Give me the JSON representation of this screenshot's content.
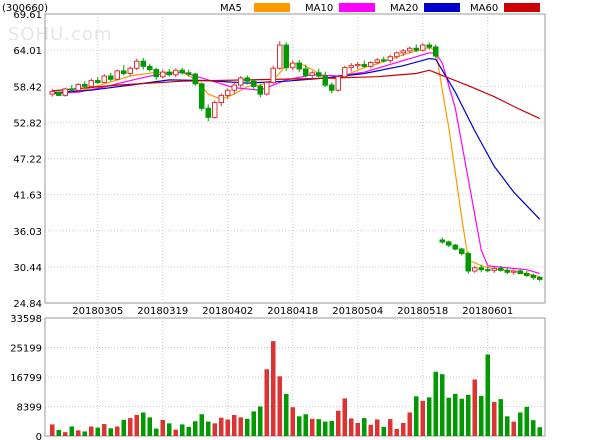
{
  "chart_data": {
    "type": "candlestick",
    "ticker": "(300660)",
    "watermark": "SOHU.com",
    "price_axis": {
      "ylim": [
        24.84,
        69.61
      ],
      "ticks": [
        "69.61",
        "64.01",
        "58.42",
        "52.82",
        "47.22",
        "41.63",
        "36.03",
        "30.44",
        "24.84"
      ]
    },
    "volume_axis": {
      "ylim": [
        0,
        33598
      ],
      "ticks": [
        "33598",
        "25199",
        "16799",
        "8399",
        "0"
      ]
    },
    "date_labels": [
      {
        "index": 7,
        "label": "20180305"
      },
      {
        "index": 17,
        "label": "20180319"
      },
      {
        "index": 27,
        "label": "20180402"
      },
      {
        "index": 37,
        "label": "20180418"
      },
      {
        "index": 47,
        "label": "20180504"
      },
      {
        "index": 57,
        "label": "20180518"
      },
      {
        "index": 67,
        "label": "20180601"
      }
    ],
    "legend": [
      {
        "name": "MA5",
        "color": "#ff9900"
      },
      {
        "name": "MA10",
        "color": "#ff00ff"
      },
      {
        "name": "MA20",
        "color": "#0000cc"
      },
      {
        "name": "MA60",
        "color": "#cc0000"
      }
    ],
    "up_color": "#dd3333",
    "down_color": "#009900",
    "candles": [
      [
        57.2,
        58.0,
        56.8,
        57.6
      ],
      [
        57.5,
        57.6,
        56.9,
        57.0
      ],
      [
        57.0,
        58.2,
        56.8,
        58.0
      ],
      [
        58.0,
        58.6,
        57.5,
        57.8
      ],
      [
        57.8,
        58.9,
        57.6,
        58.7
      ],
      [
        58.7,
        59.2,
        58.1,
        58.4
      ],
      [
        58.4,
        59.6,
        58.2,
        59.3
      ],
      [
        59.3,
        59.8,
        58.8,
        59.0
      ],
      [
        59.0,
        60.3,
        58.9,
        60.0
      ],
      [
        60.0,
        60.5,
        59.2,
        59.5
      ],
      [
        59.5,
        61.0,
        59.3,
        60.8
      ],
      [
        60.8,
        61.7,
        60.1,
        60.4
      ],
      [
        60.4,
        61.5,
        60.0,
        61.2
      ],
      [
        61.2,
        62.7,
        60.9,
        62.3
      ],
      [
        62.3,
        62.8,
        61.0,
        61.5
      ],
      [
        61.5,
        61.9,
        60.7,
        61.0
      ],
      [
        61.0,
        61.3,
        59.4,
        59.9
      ],
      [
        59.9,
        61.0,
        59.6,
        60.6
      ],
      [
        60.6,
        61.1,
        59.9,
        60.2
      ],
      [
        60.2,
        61.2,
        59.8,
        60.9
      ],
      [
        60.9,
        61.3,
        60.2,
        60.5
      ],
      [
        60.5,
        61.0,
        59.9,
        60.3
      ],
      [
        60.3,
        60.5,
        58.5,
        58.8
      ],
      [
        58.8,
        59.0,
        54.6,
        55.0
      ],
      [
        55.0,
        55.6,
        53.0,
        53.6
      ],
      [
        53.6,
        56.2,
        53.4,
        55.9
      ],
      [
        55.9,
        57.3,
        55.3,
        57.0
      ],
      [
        57.0,
        58.1,
        56.4,
        57.8
      ],
      [
        57.8,
        59.0,
        57.2,
        58.6
      ],
      [
        58.6,
        60.0,
        58.2,
        59.7
      ],
      [
        59.7,
        60.1,
        58.7,
        59.2
      ],
      [
        59.2,
        59.5,
        58.0,
        58.4
      ],
      [
        58.4,
        58.8,
        56.7,
        57.2
      ],
      [
        57.2,
        59.2,
        57.0,
        59.0
      ],
      [
        59.0,
        61.6,
        58.8,
        61.2
      ],
      [
        61.2,
        65.4,
        61.0,
        64.8
      ],
      [
        64.8,
        65.2,
        60.8,
        61.3
      ],
      [
        61.3,
        62.4,
        60.9,
        62.0
      ],
      [
        62.0,
        62.5,
        60.6,
        61.1
      ],
      [
        61.1,
        61.8,
        59.8,
        60.1
      ],
      [
        60.1,
        60.8,
        59.7,
        60.5
      ],
      [
        60.5,
        61.1,
        59.8,
        60.0
      ],
      [
        60.0,
        60.7,
        58.3,
        58.6
      ],
      [
        58.6,
        59.0,
        57.3,
        57.8
      ],
      [
        57.8,
        60.2,
        57.6,
        59.9
      ],
      [
        59.9,
        61.6,
        59.7,
        61.3
      ],
      [
        61.3,
        62.0,
        60.7,
        61.6
      ],
      [
        61.6,
        62.2,
        61.1,
        61.8
      ],
      [
        61.8,
        62.4,
        61.2,
        61.5
      ],
      [
        61.5,
        62.3,
        61.2,
        62.1
      ],
      [
        62.1,
        62.8,
        61.8,
        62.5
      ],
      [
        62.5,
        63.0,
        62.1,
        62.4
      ],
      [
        62.4,
        63.3,
        62.0,
        63.0
      ],
      [
        63.0,
        63.8,
        62.6,
        63.6
      ],
      [
        63.6,
        64.2,
        63.1,
        63.9
      ],
      [
        63.9,
        64.6,
        63.5,
        64.3
      ],
      [
        64.3,
        64.9,
        63.7,
        64.0
      ],
      [
        64.0,
        65.1,
        63.8,
        64.8
      ],
      [
        64.8,
        65.2,
        64.1,
        64.5
      ],
      [
        64.5,
        64.9,
        62.8,
        63.1
      ],
      [
        34.6,
        35.0,
        34.0,
        34.3
      ],
      [
        34.3,
        34.5,
        33.5,
        33.8
      ],
      [
        33.8,
        34.0,
        33.0,
        33.2
      ],
      [
        33.2,
        33.4,
        32.2,
        32.5
      ],
      [
        32.5,
        32.8,
        29.4,
        29.8
      ],
      [
        29.8,
        30.6,
        29.5,
        30.3
      ],
      [
        30.3,
        30.8,
        29.6,
        30.0
      ],
      [
        30.0,
        30.4,
        29.6,
        29.9
      ],
      [
        29.9,
        30.5,
        29.5,
        30.2
      ],
      [
        30.2,
        30.6,
        29.7,
        29.9
      ],
      [
        29.9,
        30.3,
        29.3,
        29.6
      ],
      [
        29.6,
        30.0,
        29.2,
        29.8
      ],
      [
        29.8,
        30.1,
        29.3,
        29.4
      ],
      [
        29.4,
        29.8,
        28.9,
        29.1
      ],
      [
        29.1,
        29.4,
        28.4,
        28.8
      ],
      [
        28.8,
        29.0,
        28.2,
        28.5
      ]
    ],
    "volumes": [
      3300,
      1700,
      1100,
      2700,
      1600,
      1300,
      2700,
      2400,
      3400,
      2200,
      2700,
      4600,
      5100,
      6000,
      6700,
      5300,
      2100,
      4600,
      3600,
      1800,
      3300,
      2600,
      4200,
      6200,
      4100,
      3600,
      5200,
      4700,
      6000,
      5300,
      4900,
      7000,
      8400,
      19000,
      27000,
      17000,
      12000,
      8200,
      5600,
      6200,
      4900,
      4800,
      4100,
      4300,
      7200,
      10700,
      5000,
      3700,
      5100,
      3200,
      4700,
      2600,
      4800,
      2000,
      3700,
      6700,
      11300,
      10000,
      11000,
      18300,
      17600,
      10900,
      12000,
      10600,
      11700,
      16100,
      11400,
      23200,
      9700,
      10500,
      5600,
      4100,
      6700,
      8300,
      4500,
      2500
    ],
    "ma5": [
      [
        0,
        57.2
      ],
      [
        4,
        57.6
      ],
      [
        8,
        58.8
      ],
      [
        12,
        60.0
      ],
      [
        16,
        60.6
      ],
      [
        20,
        60.6
      ],
      [
        22,
        59.5
      ],
      [
        24,
        57.2
      ],
      [
        26,
        56.4
      ],
      [
        28,
        57.2
      ],
      [
        30,
        58.4
      ],
      [
        32,
        58.6
      ],
      [
        34,
        59.4
      ],
      [
        36,
        61.6
      ],
      [
        38,
        62.0
      ],
      [
        40,
        61.0
      ],
      [
        42,
        59.8
      ],
      [
        44,
        59.5
      ],
      [
        46,
        60.5
      ],
      [
        48,
        61.3
      ],
      [
        50,
        61.9
      ],
      [
        52,
        62.6
      ],
      [
        54,
        63.3
      ],
      [
        56,
        63.9
      ],
      [
        58,
        64.4
      ],
      [
        59,
        64.0
      ],
      [
        60,
        57.8
      ],
      [
        61,
        52.0
      ],
      [
        62,
        45.0
      ],
      [
        63,
        38.0
      ],
      [
        64,
        31.5
      ],
      [
        66,
        30.6
      ],
      [
        68,
        30.1
      ],
      [
        70,
        29.9
      ],
      [
        72,
        29.6
      ],
      [
        74,
        29.2
      ],
      [
        75,
        28.9
      ]
    ],
    "ma10": [
      [
        0,
        57.3
      ],
      [
        4,
        57.5
      ],
      [
        8,
        58.3
      ],
      [
        12,
        59.3
      ],
      [
        16,
        60.2
      ],
      [
        20,
        60.6
      ],
      [
        24,
        59.4
      ],
      [
        28,
        58.2
      ],
      [
        32,
        57.8
      ],
      [
        36,
        59.4
      ],
      [
        40,
        60.2
      ],
      [
        44,
        60.0
      ],
      [
        48,
        60.6
      ],
      [
        52,
        61.8
      ],
      [
        56,
        63.0
      ],
      [
        58,
        63.6
      ],
      [
        59,
        63.5
      ],
      [
        60,
        62.0
      ],
      [
        62,
        55.0
      ],
      [
        64,
        44.0
      ],
      [
        66,
        33.0
      ],
      [
        67,
        30.6
      ],
      [
        70,
        30.3
      ],
      [
        73,
        30.0
      ],
      [
        75,
        29.4
      ]
    ],
    "ma20": [
      [
        0,
        57.4
      ],
      [
        6,
        57.8
      ],
      [
        12,
        58.6
      ],
      [
        18,
        59.4
      ],
      [
        24,
        59.3
      ],
      [
        30,
        58.9
      ],
      [
        36,
        59.2
      ],
      [
        42,
        59.7
      ],
      [
        48,
        60.4
      ],
      [
        54,
        61.6
      ],
      [
        58,
        62.7
      ],
      [
        59,
        62.6
      ],
      [
        62,
        57.5
      ],
      [
        65,
        51.5
      ],
      [
        68,
        46.0
      ],
      [
        71,
        42.0
      ],
      [
        75,
        37.8
      ]
    ],
    "ma60": [
      [
        0,
        57.7
      ],
      [
        10,
        58.6
      ],
      [
        20,
        59.2
      ],
      [
        30,
        59.4
      ],
      [
        40,
        59.6
      ],
      [
        50,
        59.9
      ],
      [
        56,
        60.4
      ],
      [
        58,
        60.9
      ],
      [
        60,
        60.1
      ],
      [
        64,
        58.5
      ],
      [
        68,
        56.8
      ],
      [
        72,
        54.8
      ],
      [
        75,
        53.4
      ]
    ]
  }
}
